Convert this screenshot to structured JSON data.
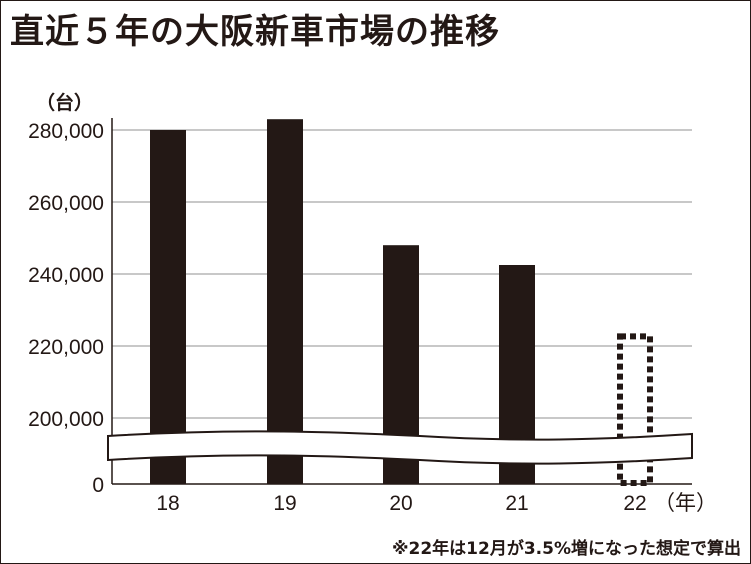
{
  "title": "直近５年の大阪新車市場の推移",
  "unit": "（台）",
  "note": "※22年は12月が3.5%増になった想定で算出",
  "colors": {
    "bar": "#231815",
    "grid": "#b5b5b5",
    "text": "#231815"
  },
  "chart_data": {
    "type": "bar",
    "title": "直近５年の大阪新車市場の推移",
    "ylabel": "（台）",
    "xlabel": "（年）",
    "categories": [
      "18",
      "19",
      "20",
      "21",
      "22"
    ],
    "values": [
      280000,
      283000,
      248000,
      242500,
      223500
    ],
    "estimated": [
      false,
      false,
      false,
      false,
      true
    ],
    "y_ticks": [
      0,
      200000,
      220000,
      240000,
      260000,
      280000
    ],
    "y_tick_labels": [
      "0",
      "200,000",
      "220,000",
      "240,000",
      "260,000",
      "280,000"
    ],
    "ylim": [
      0,
      290000
    ],
    "axis_break": true,
    "grid": true,
    "legend": "none"
  }
}
